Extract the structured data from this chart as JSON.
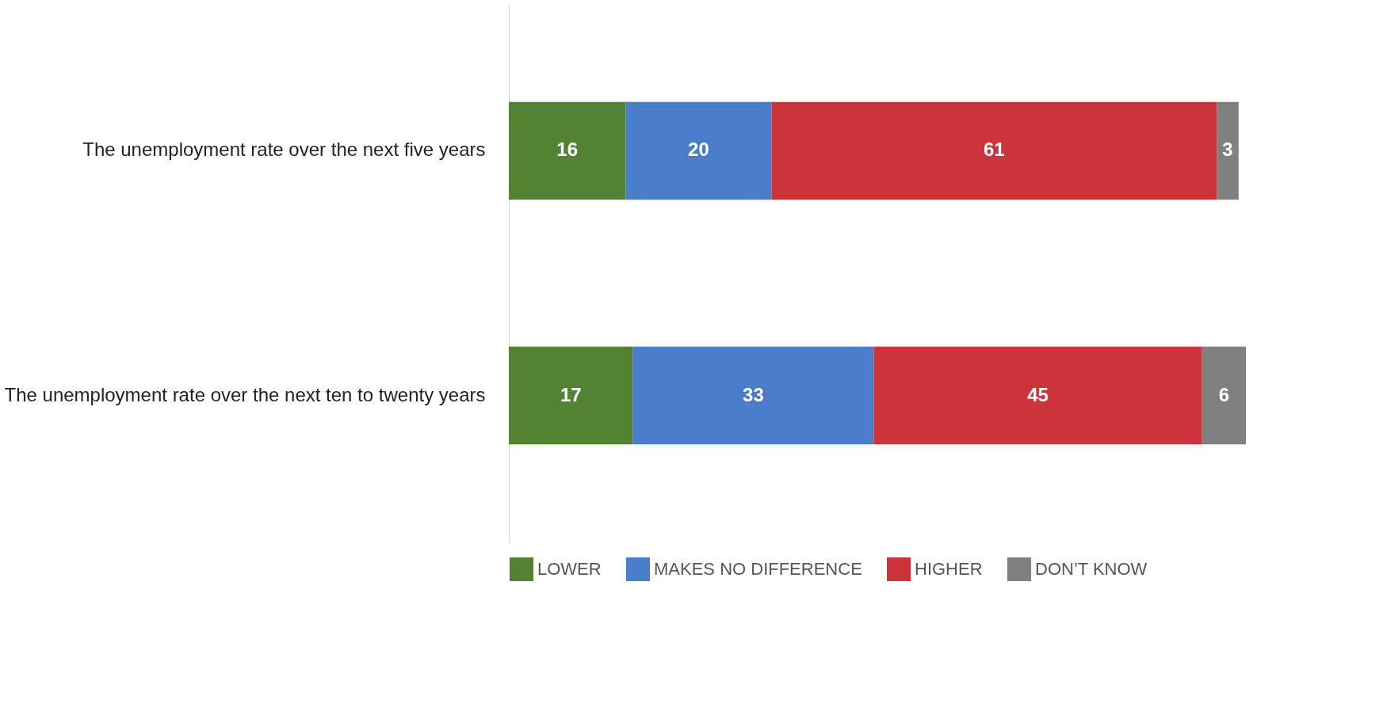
{
  "chart_data": {
    "type": "bar",
    "orientation": "horizontal",
    "stacked": true,
    "data_labels": true,
    "legend": "bottom",
    "categories": [
      "The unemployment rate over the next five years",
      "The unemployment rate over the next ten to twenty years"
    ],
    "series": [
      {
        "name": "LOWER",
        "color": "#548235",
        "values": [
          16,
          17
        ]
      },
      {
        "name": "MAKES NO DIFFERENCE",
        "color": "#4a7dc9",
        "values": [
          20,
          33
        ]
      },
      {
        "name": "HIGHER",
        "color": "#cc333b",
        "values": [
          61,
          45
        ]
      },
      {
        "name": "DON’T KNOW",
        "color": "#808080",
        "values": [
          3,
          6
        ]
      }
    ]
  }
}
